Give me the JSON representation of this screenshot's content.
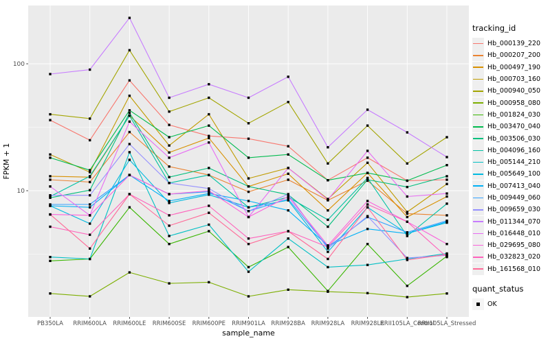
{
  "figure": {
    "panel_bg": "#EBEBEB",
    "grid_color": "#FFFFFF",
    "axis_text_color": "#4D4D4D",
    "axis_title_color": "#000000",
    "tick_color": "#333333",
    "point_color": "#000000"
  },
  "chart_data": {
    "type": "line",
    "title": "",
    "xlabel": "sample_name",
    "ylabel": "FPKM + 1",
    "y_scale": "log10",
    "y_ticks": [
      10,
      100
    ],
    "y_minor_breaks": [
      3.162,
      31.62
    ],
    "ylim": [
      1.03,
      290
    ],
    "grid": true,
    "legend_position": "right",
    "point_shape": "filled-square",
    "categories": [
      "PB350LA",
      "RRIM600LA",
      "RRIM600LE",
      "RRIM600SE",
      "RRIM600PE",
      "RRIM901LA",
      "RRIM928BA",
      "RRIM928LA",
      "RRIM928LE",
      "RRII105LA_Control",
      "RRII105LA_Stressed"
    ],
    "series": [
      {
        "name": "Hb_000139_220",
        "color": "#F8766D",
        "values": [
          36,
          25,
          74,
          33,
          27,
          25.7,
          22.4,
          12.1,
          18.2,
          12,
          12.2
        ]
      },
      {
        "name": "Hb_000207_200",
        "color": "#EA8331",
        "values": [
          12.2,
          11.7,
          29,
          15.5,
          13.3,
          9.8,
          12.2,
          8.4,
          12,
          6.6,
          6.4
        ]
      },
      {
        "name": "Hb_000497_190",
        "color": "#D89000",
        "values": [
          13,
          12.8,
          39,
          20,
          26,
          10.8,
          13.6,
          7,
          13.8,
          6.2,
          9
        ]
      },
      {
        "name": "Hb_000703_160",
        "color": "#C09B00",
        "values": [
          19.3,
          14,
          56,
          22.7,
          40,
          12.5,
          15.1,
          8.6,
          16.6,
          6.8,
          11.3
        ]
      },
      {
        "name": "Hb_000940_050",
        "color": "#A3A500",
        "values": [
          40,
          37,
          128,
          42,
          54,
          34,
          50,
          16.4,
          32.6,
          16.4,
          26.4
        ]
      },
      {
        "name": "Hb_000958_080",
        "color": "#7CAE00",
        "values": [
          1.55,
          1.47,
          2.27,
          1.86,
          1.9,
          1.47,
          1.66,
          1.6,
          1.56,
          1.45,
          1.55
        ]
      },
      {
        "name": "Hb_001824_030",
        "color": "#39B600",
        "values": [
          2.8,
          2.9,
          7.4,
          3.8,
          4.8,
          2.5,
          3.6,
          1.62,
          3.8,
          1.78,
          3.05
        ]
      },
      {
        "name": "Hb_003470_040",
        "color": "#00BB4E",
        "values": [
          18.2,
          14.5,
          43,
          26.4,
          32.6,
          18.2,
          19.3,
          12.1,
          13.8,
          12,
          15.9
        ]
      },
      {
        "name": "Hb_003506_030",
        "color": "#00BF7D",
        "values": [
          8.8,
          10.1,
          41,
          12.8,
          15.1,
          10.8,
          9.3,
          5.2,
          12.2,
          10.7,
          13
        ]
      },
      {
        "name": "Hb_004096_160",
        "color": "#00C1A3",
        "values": [
          9,
          13,
          39,
          11.5,
          13.3,
          7.4,
          8.9,
          5.9,
          12.6,
          4.4,
          7.9
        ]
      },
      {
        "name": "Hb_005144_210",
        "color": "#00BFC4",
        "values": [
          3,
          2.9,
          20.1,
          4.4,
          5.4,
          2.3,
          4.2,
          2.5,
          2.6,
          2.9,
          3.2
        ]
      },
      {
        "name": "Hb_005649_100",
        "color": "#00BAE0",
        "values": [
          7.6,
          5.5,
          17.5,
          8,
          9.3,
          7.4,
          8.4,
          3.3,
          7.4,
          4.6,
          5.6
        ]
      },
      {
        "name": "Hb_007413_040",
        "color": "#00B0F6",
        "values": [
          7.6,
          7.4,
          13.3,
          8.3,
          9.5,
          8.3,
          7,
          3.7,
          5,
          4.6,
          5.7
        ]
      },
      {
        "name": "Hb_009449_060",
        "color": "#35A2FF",
        "values": [
          7.8,
          7.8,
          13.3,
          9.4,
          9.8,
          6.9,
          8.6,
          3.6,
          6.2,
          4.7,
          5.8
        ]
      },
      {
        "name": "Hb_009659_030",
        "color": "#9590FF",
        "values": [
          9.2,
          9.2,
          23.3,
          11.5,
          10.4,
          6.9,
          9.4,
          3.5,
          6.3,
          2.95,
          3.1
        ]
      },
      {
        "name": "Hb_011344_070",
        "color": "#C77CFF",
        "values": [
          83,
          90,
          230,
          54,
          69,
          54,
          79,
          22,
          43.5,
          28.8,
          18.4
        ]
      },
      {
        "name": "Hb_016448_010",
        "color": "#E76BF3",
        "values": [
          10.8,
          6.4,
          35,
          18.2,
          24,
          6.2,
          15.1,
          8.5,
          20.6,
          9,
          9.5
        ]
      },
      {
        "name": "Hb_029695_080",
        "color": "#FA62DB",
        "values": [
          6.5,
          6.4,
          13.3,
          9.4,
          10,
          6.2,
          9,
          3.7,
          8.3,
          5.7,
          3.8
        ]
      },
      {
        "name": "Hb_032823_020",
        "color": "#FF62BC",
        "values": [
          5.2,
          4.5,
          9.4,
          6.4,
          7.6,
          4.2,
          4.8,
          3.6,
          7.8,
          5.7,
          3
        ]
      },
      {
        "name": "Hb_161568_010",
        "color": "#FF6A98",
        "values": [
          6.5,
          3.5,
          9.4,
          5.3,
          6.7,
          3.8,
          4.8,
          2.9,
          7.4,
          2.85,
          3.15
        ]
      }
    ]
  },
  "legend": {
    "tracking_title": "tracking_id",
    "quant_title": "quant_status",
    "quant_items": [
      {
        "label": "OK"
      }
    ]
  }
}
